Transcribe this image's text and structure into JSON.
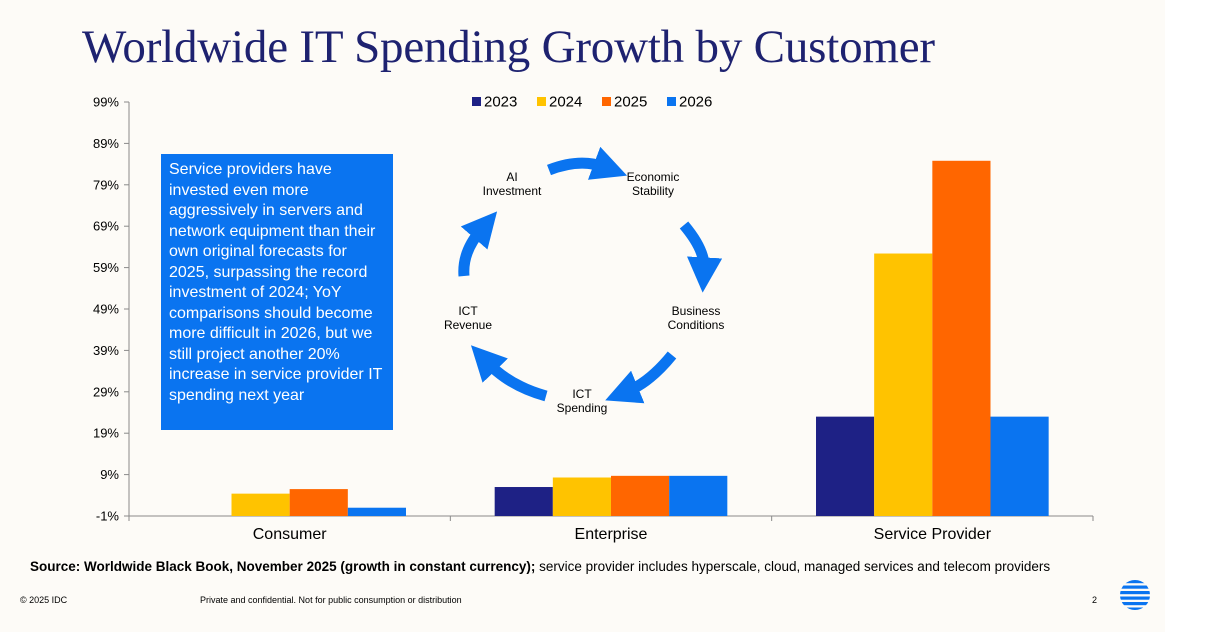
{
  "title": "Worldwide IT Spending Growth by Customer",
  "callout_text": "Service providers have invested even more aggressively in servers and network equipment than their own original forecasts for 2025, surpassing the record investment of 2024; YoY comparisons should become more difficult in 2026, but we still project another 20% increase in service provider IT spending next year",
  "cycle": {
    "labels": [
      [
        "AI",
        "Investment"
      ],
      [
        "Economic",
        "Stability"
      ],
      [
        "Business",
        "Conditions"
      ],
      [
        "ICT",
        "Spending"
      ],
      [
        "ICT",
        "Revenue"
      ]
    ],
    "arrow_color": "#0a74f0"
  },
  "source": {
    "bold": "Source: Worldwide Black Book, November 2025 (growth in constant currency);",
    "rest": " service provider includes hyperscale, cloud, managed services and telecom providers"
  },
  "footer": {
    "copyright": "© 2025 IDC",
    "confidential": "Private and confidential. Not for public consumption or distribution",
    "page": "2"
  },
  "chart_data": {
    "type": "bar",
    "title": "Worldwide IT Spending Growth by Customer",
    "categories": [
      "Consumer",
      "Enterprise",
      "Service Provider"
    ],
    "series": [
      {
        "name": "2023",
        "color": "#1e2185",
        "values": [
          -1,
          6,
          23
        ]
      },
      {
        "name": "2024",
        "color": "#ffc300",
        "values": [
          4.4,
          8.3,
          62.4
        ]
      },
      {
        "name": "2025",
        "color": "#ff6600",
        "values": [
          5.5,
          8.7,
          84.8
        ]
      },
      {
        "name": "2026",
        "color": "#0a74f0",
        "values": [
          1,
          8.7,
          23
        ]
      }
    ],
    "yticks": [
      "99%",
      "89%",
      "79%",
      "69%",
      "59%",
      "49%",
      "39%",
      "29%",
      "19%",
      "9%",
      "-1%"
    ],
    "ylim": [
      -1,
      99
    ],
    "legend_position": "top-center",
    "xlabel": "",
    "ylabel": ""
  }
}
